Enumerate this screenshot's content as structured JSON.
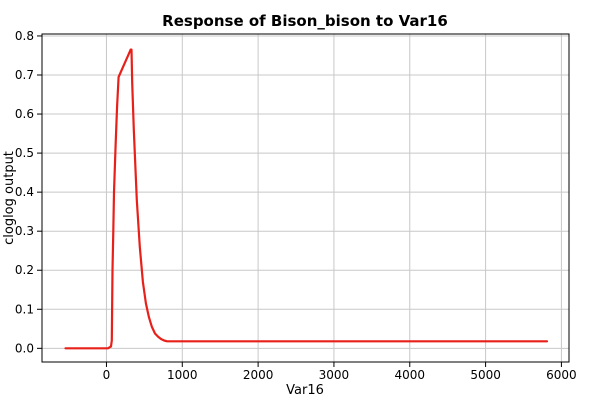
{
  "chart_data": {
    "type": "line",
    "title": "Response of Bison_bison to Var16",
    "xlabel": "Var16",
    "ylabel": "cloglog output",
    "xlim": [
      -850,
      6100
    ],
    "ylim": [
      -0.035,
      0.805
    ],
    "x_ticks": [
      0,
      1000,
      2000,
      3000,
      4000,
      5000,
      6000
    ],
    "y_ticks": [
      0.0,
      0.1,
      0.2,
      0.3,
      0.4,
      0.5,
      0.6,
      0.7,
      0.8
    ],
    "y_tick_labels": [
      "0.0",
      "0.1",
      "0.2",
      "0.3",
      "0.4",
      "0.5",
      "0.6",
      "0.7",
      "0.8"
    ],
    "grid": true,
    "line_color": "#e8201a",
    "series": [
      {
        "x": [
          -540,
          20,
          60,
          70,
          80,
          90,
          100,
          120,
          140,
          160,
          320,
          330,
          340,
          360,
          400,
          440,
          480,
          520,
          560,
          600,
          640,
          680,
          720,
          760,
          800,
          850,
          5810
        ],
        "y": [
          0.0,
          0.0,
          0.005,
          0.02,
          0.2,
          0.3,
          0.4,
          0.52,
          0.62,
          0.695,
          0.765,
          0.765,
          0.68,
          0.56,
          0.38,
          0.26,
          0.17,
          0.115,
          0.08,
          0.055,
          0.038,
          0.03,
          0.024,
          0.02,
          0.018,
          0.018,
          0.018
        ]
      }
    ]
  }
}
